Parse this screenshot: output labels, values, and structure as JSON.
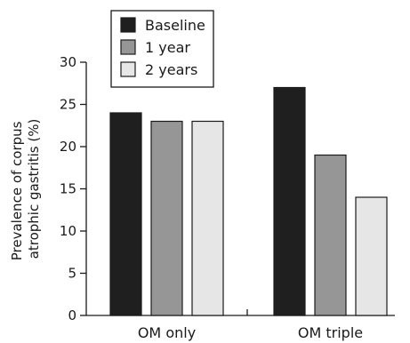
{
  "chart_data": {
    "type": "bar",
    "categories": [
      "OM only",
      "OM triple"
    ],
    "series": [
      {
        "name": "Baseline",
        "values": [
          24,
          27
        ],
        "color": "#1f1f1f"
      },
      {
        "name": "1 year",
        "values": [
          23,
          19
        ],
        "color": "#969696"
      },
      {
        "name": "2 years",
        "values": [
          23,
          14
        ],
        "color": "#e6e6e6"
      }
    ],
    "ylabel_lines": [
      "Prevalence of corpus",
      "atrophic gastritis (%)"
    ],
    "ylim": [
      0,
      30
    ],
    "yticks": [
      "0",
      "5",
      "10",
      "15",
      "20",
      "25",
      "30"
    ],
    "grid": false,
    "legend_position": "top-left"
  }
}
